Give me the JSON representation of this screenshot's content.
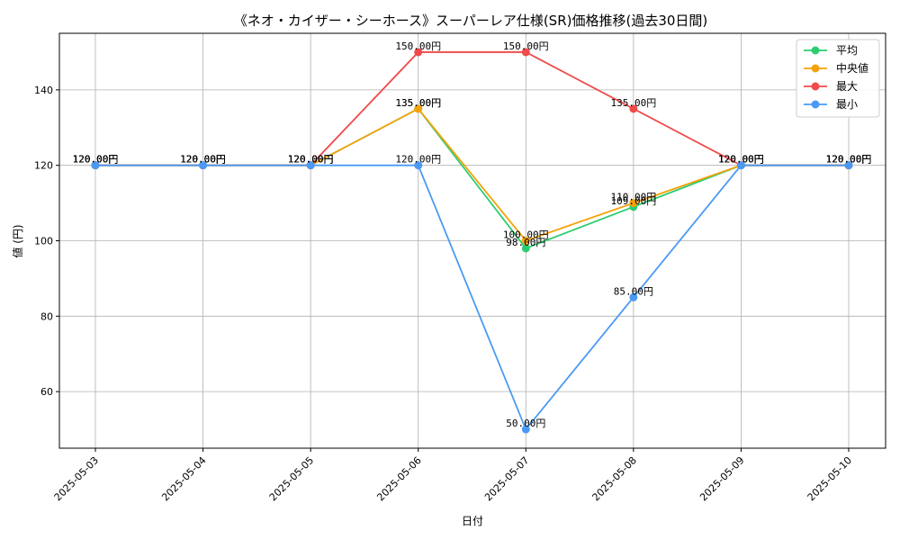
{
  "chart_data": {
    "type": "line",
    "title": "《ネオ・カイザー・シーホース》スーパーレア仕様(SR)価格推移(過去30日間)",
    "xlabel": "日付",
    "ylabel": "値 (円)",
    "categories": [
      "2025-05-03",
      "2025-05-04",
      "2025-05-05",
      "2025-05-06",
      "2025-05-07",
      "2025-05-08",
      "2025-05-09",
      "2025-05-10"
    ],
    "ylim": [
      45,
      155
    ],
    "yticks": [
      60,
      80,
      100,
      120,
      140
    ],
    "grid": true,
    "legend_position": "top-right",
    "label_suffix": "円",
    "series": [
      {
        "name": "平均",
        "color": "#2ecc71",
        "values": [
          120,
          120,
          120,
          135,
          98,
          109,
          120,
          120
        ]
      },
      {
        "name": "中央値",
        "color": "#f5a20a",
        "values": [
          120,
          120,
          120,
          135,
          100,
          110,
          120,
          120
        ]
      },
      {
        "name": "最大",
        "color": "#f04a4a",
        "values": [
          120,
          120,
          120,
          150,
          150,
          135,
          120,
          120
        ]
      },
      {
        "name": "最小",
        "color": "#4a9af5",
        "values": [
          120,
          120,
          120,
          120,
          50,
          85,
          120,
          120
        ]
      }
    ]
  }
}
